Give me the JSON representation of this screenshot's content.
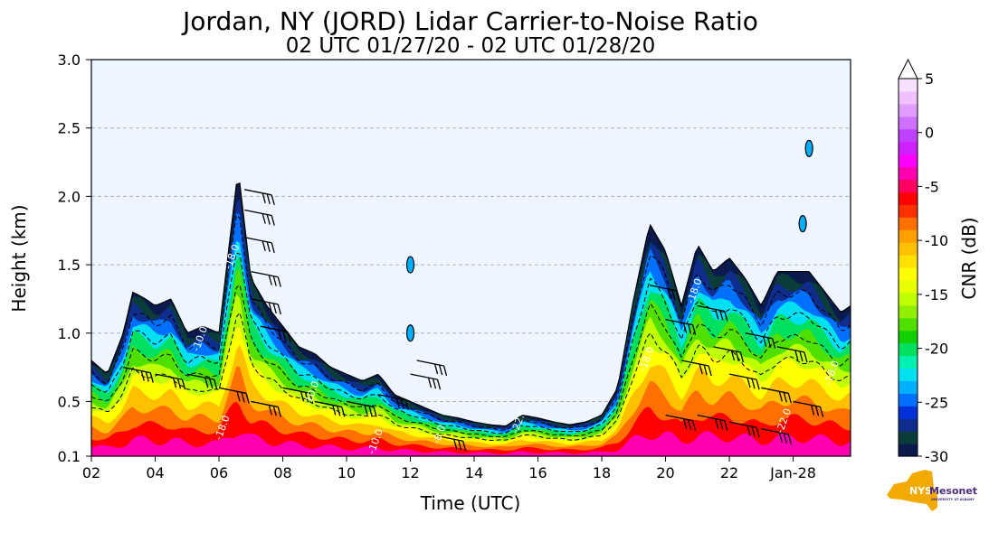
{
  "chart_data": {
    "type": "heatmap",
    "title": "Jordan, NY (JORD) Lidar Carrier-to-Noise Ratio",
    "subtitle": "02 UTC 01/27/20 - 02 UTC 01/28/20",
    "xlabel": "Time (UTC)",
    "ylabel": "Height (km)",
    "xlim": [
      2,
      25.8
    ],
    "ylim": [
      0.1,
      3.0
    ],
    "x_ticks": [
      {
        "value": 2,
        "label": "02"
      },
      {
        "value": 4,
        "label": "04"
      },
      {
        "value": 6,
        "label": "06"
      },
      {
        "value": 8,
        "label": "08"
      },
      {
        "value": 10,
        "label": "10"
      },
      {
        "value": 12,
        "label": "12"
      },
      {
        "value": 14,
        "label": "14"
      },
      {
        "value": 16,
        "label": "16"
      },
      {
        "value": 18,
        "label": "18"
      },
      {
        "value": 20,
        "label": "20"
      },
      {
        "value": 22,
        "label": "22"
      },
      {
        "value": 24,
        "label": "Jan-28"
      }
    ],
    "y_ticks": [
      {
        "value": 0.1,
        "label": "0.1"
      },
      {
        "value": 0.5,
        "label": "0.5"
      },
      {
        "value": 1.0,
        "label": "1.0"
      },
      {
        "value": 1.5,
        "label": "1.5"
      },
      {
        "value": 2.0,
        "label": "2.0"
      },
      {
        "value": 2.5,
        "label": "2.5"
      },
      {
        "value": 3.0,
        "label": "3.0"
      }
    ],
    "grid": "horizontal dashed",
    "colorbar": {
      "label": "CNR (dB)",
      "min": -30,
      "max": 5,
      "extend": "max",
      "ticks": [
        {
          "value": 5,
          "label": "5"
        },
        {
          "value": 0,
          "label": "0"
        },
        {
          "value": -5,
          "label": "-5"
        },
        {
          "value": -10,
          "label": "-10"
        },
        {
          "value": -15,
          "label": "-15"
        },
        {
          "value": -20,
          "label": "-20"
        },
        {
          "value": -25,
          "label": "-25"
        },
        {
          "value": -30,
          "label": "-30"
        }
      ],
      "colors": [
        "#0b1a4d",
        "#0a3d3a",
        "#0f2d8c",
        "#0030d8",
        "#0070ff",
        "#00b0ff",
        "#00e0f0",
        "#00f0b0",
        "#00e060",
        "#10d000",
        "#50e000",
        "#90f000",
        "#c0ff00",
        "#e8ff00",
        "#ffff00",
        "#ffe000",
        "#ffc000",
        "#ffa000",
        "#ff7000",
        "#ff3000",
        "#ff0000",
        "#ff0060",
        "#ff00b0",
        "#ff00ff",
        "#d020ff",
        "#c040ff",
        "#d070ff",
        "#e09cff",
        "#f0c0ff",
        "#f8e0ff"
      ]
    },
    "cloud_profile": {
      "times": [
        2.0,
        2.5,
        3.0,
        3.3,
        3.7,
        4.0,
        4.5,
        5.0,
        5.5,
        6.0,
        6.3,
        6.6,
        7.0,
        7.5,
        8.0,
        8.5,
        9.0,
        9.5,
        10.0,
        10.5,
        11.0,
        11.5,
        12.0,
        12.5,
        13.0,
        13.5,
        14.0,
        14.5,
        15.0,
        15.5,
        16.0,
        16.5,
        17.0,
        17.5,
        18.0,
        18.5,
        19.0,
        19.5,
        20.0,
        20.5,
        21.0,
        21.5,
        22.0,
        22.5,
        23.0,
        23.5,
        24.0,
        24.5,
        25.0,
        25.5,
        25.8
      ],
      "tops_km": [
        0.8,
        0.7,
        1.0,
        1.3,
        1.25,
        1.2,
        1.25,
        1.0,
        1.05,
        1.0,
        1.6,
        2.2,
        1.4,
        1.2,
        1.05,
        0.9,
        0.85,
        0.75,
        0.7,
        0.65,
        0.7,
        0.55,
        0.5,
        0.45,
        0.4,
        0.38,
        0.35,
        0.33,
        0.32,
        0.4,
        0.38,
        0.35,
        0.33,
        0.35,
        0.4,
        0.6,
        1.25,
        1.8,
        1.6,
        1.2,
        1.65,
        1.45,
        1.55,
        1.4,
        1.2,
        1.45,
        1.45,
        1.45,
        1.3,
        1.15,
        1.2
      ]
    },
    "isolated_echoes": [
      {
        "time": 12.0,
        "height_km": 1.5
      },
      {
        "time": 12.0,
        "height_km": 1.0
      },
      {
        "time": 24.3,
        "height_km": 1.8
      },
      {
        "time": 24.5,
        "height_km": 2.35
      }
    ],
    "wind_barbs": [
      {
        "time": 6.8,
        "height_km": 2.05
      },
      {
        "time": 6.8,
        "height_km": 1.9
      },
      {
        "time": 6.8,
        "height_km": 1.7
      },
      {
        "time": 7.0,
        "height_km": 1.45
      },
      {
        "time": 7.0,
        "height_km": 1.25
      },
      {
        "time": 7.3,
        "height_km": 1.05
      },
      {
        "time": 3.0,
        "height_km": 0.75
      },
      {
        "time": 4.0,
        "height_km": 0.7
      },
      {
        "time": 5.0,
        "height_km": 0.7
      },
      {
        "time": 6.0,
        "height_km": 0.6
      },
      {
        "time": 7.0,
        "height_km": 0.5
      },
      {
        "time": 8.0,
        "height_km": 0.6
      },
      {
        "time": 9.0,
        "height_km": 0.5
      },
      {
        "time": 10.0,
        "height_km": 0.5
      },
      {
        "time": 11.0,
        "height_km": 0.55
      },
      {
        "time": 12.0,
        "height_km": 0.7
      },
      {
        "time": 12.2,
        "height_km": 0.8
      },
      {
        "time": 12.8,
        "height_km": 0.25
      },
      {
        "time": 19.5,
        "height_km": 1.35
      },
      {
        "time": 20.0,
        "height_km": 1.1
      },
      {
        "time": 20.5,
        "height_km": 0.8
      },
      {
        "time": 21.0,
        "height_km": 1.2
      },
      {
        "time": 21.5,
        "height_km": 0.9
      },
      {
        "time": 22.0,
        "height_km": 0.7
      },
      {
        "time": 22.5,
        "height_km": 1.0
      },
      {
        "time": 23.0,
        "height_km": 0.6
      },
      {
        "time": 23.5,
        "height_km": 0.9
      },
      {
        "time": 24.0,
        "height_km": 0.5
      },
      {
        "time": 20.0,
        "height_km": 0.4
      },
      {
        "time": 21.0,
        "height_km": 0.4
      },
      {
        "time": 22.0,
        "height_km": 0.35
      },
      {
        "time": 23.0,
        "height_km": 0.3
      }
    ],
    "contour_labels": [
      {
        "time": 5.5,
        "height_km": 0.95,
        "text": "-10.0"
      },
      {
        "time": 6.5,
        "height_km": 1.55,
        "text": "-18.0"
      },
      {
        "time": 6.2,
        "height_km": 0.3,
        "text": "-18.0"
      },
      {
        "time": 9.0,
        "height_km": 0.55,
        "text": "-10.0"
      },
      {
        "time": 11.0,
        "height_km": 0.2,
        "text": "-10.0"
      },
      {
        "time": 13.0,
        "height_km": 0.25,
        "text": "-8.0"
      },
      {
        "time": 15.5,
        "height_km": 0.35,
        "text": "-22.0"
      },
      {
        "time": 19.5,
        "height_km": 0.8,
        "text": "-18.0"
      },
      {
        "time": 21.0,
        "height_km": 1.3,
        "text": "-18.0"
      },
      {
        "time": 23.8,
        "height_km": 0.35,
        "text": "-22.0"
      },
      {
        "time": 25.3,
        "height_km": 0.7,
        "text": "-18.0"
      }
    ]
  },
  "logo": {
    "nys_text": "NYS",
    "mesonet_text": "Mesonet",
    "university_text": "UNIVERSITY AT ALBANY",
    "colors": {
      "state": "#f2a900",
      "mesonet": "#4b2e83"
    }
  }
}
